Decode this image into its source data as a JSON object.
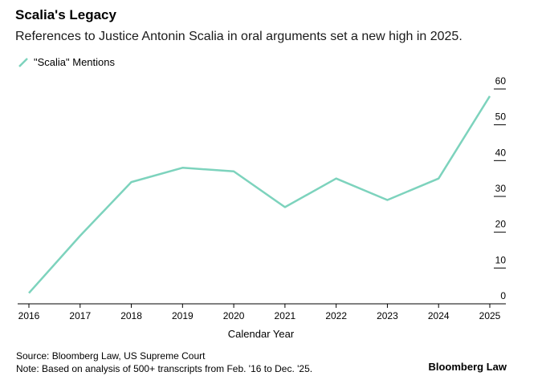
{
  "chart_data": {
    "type": "line",
    "title": "Scalia's Legacy",
    "subtitle": "References to Justice Antonin Scalia in oral arguments set a new high in 2025.",
    "xlabel": "Calendar Year",
    "ylabel": "",
    "categories": [
      "2016",
      "2017",
      "2018",
      "2019",
      "2020",
      "2021",
      "2022",
      "2023",
      "2024",
      "2025"
    ],
    "series": [
      {
        "name": "\"Scalia\" Mentions",
        "values": [
          3,
          19,
          34,
          38,
          37,
          27,
          35,
          29,
          35,
          58
        ],
        "color": "#7dd3bd"
      }
    ],
    "ylim": [
      0,
      60
    ],
    "yticks": [
      0,
      10,
      20,
      30,
      40,
      50,
      60
    ],
    "legend_position": "top-left",
    "y_axis_side": "right",
    "grid": false
  },
  "footer": {
    "source": "Source: Bloomberg Law, US Supreme Court",
    "note": "Note: Based on analysis of 500+ transcripts from Feb. '16 to Dec. '25."
  },
  "brand": "Bloomberg Law"
}
